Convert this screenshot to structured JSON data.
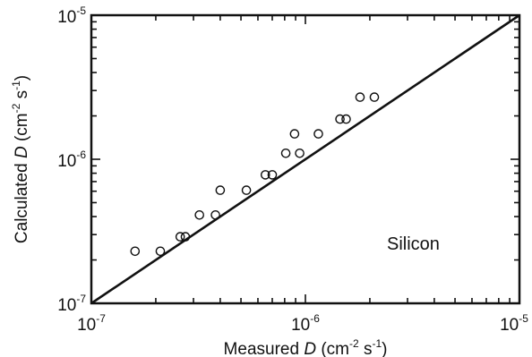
{
  "chart_data": {
    "type": "scatter",
    "x_scale": "log",
    "y_scale": "log",
    "xlim": [
      1e-07,
      1e-05
    ],
    "ylim": [
      1e-07,
      1e-05
    ],
    "xlabel": {
      "pre": "Measured ",
      "var": "D",
      "open": " (cm",
      "exp1": "-2",
      "mid": " s",
      "exp2": "-1",
      "close": ")"
    },
    "ylabel": {
      "pre": "Calculated ",
      "var": "D",
      "open": " (cm",
      "exp1": "-2",
      "mid": " s",
      "exp2": "-1",
      "close": ")"
    },
    "x_ticks": [
      {
        "value": 1e-07,
        "base": "10",
        "exp": "-7"
      },
      {
        "value": 1e-06,
        "base": "10",
        "exp": "-6"
      },
      {
        "value": 1e-05,
        "base": "10",
        "exp": "-5"
      }
    ],
    "y_ticks": [
      {
        "value": 1e-07,
        "base": "10",
        "exp": "-7"
      },
      {
        "value": 1e-06,
        "base": "10",
        "exp": "-6"
      },
      {
        "value": 1e-05,
        "base": "10",
        "exp": "-5"
      }
    ],
    "annotation": "Silicon",
    "grid": false,
    "series": [
      {
        "marker": "open-circle",
        "points": [
          [
            1.6e-07,
            2.3e-07
          ],
          [
            2.1e-07,
            2.3e-07
          ],
          [
            2.6e-07,
            2.9e-07
          ],
          [
            2.75e-07,
            2.9e-07
          ],
          [
            3.2e-07,
            4.1e-07
          ],
          [
            3.8e-07,
            4.1e-07
          ],
          [
            4e-07,
            6.1e-07
          ],
          [
            5.3e-07,
            6.1e-07
          ],
          [
            6.5e-07,
            7.8e-07
          ],
          [
            7e-07,
            7.8e-07
          ],
          [
            8.1e-07,
            1.1e-06
          ],
          [
            8.9e-07,
            1.5e-06
          ],
          [
            9.4e-07,
            1.1e-06
          ],
          [
            1.15e-06,
            1.5e-06
          ],
          [
            1.45e-06,
            1.9e-06
          ],
          [
            1.55e-06,
            1.9e-06
          ],
          [
            1.8e-06,
            2.7e-06
          ],
          [
            2.1e-06,
            2.7e-06
          ]
        ]
      }
    ],
    "reference_line": {
      "x": [
        1e-07,
        1e-05
      ],
      "y": [
        1e-07,
        1e-05
      ]
    }
  }
}
